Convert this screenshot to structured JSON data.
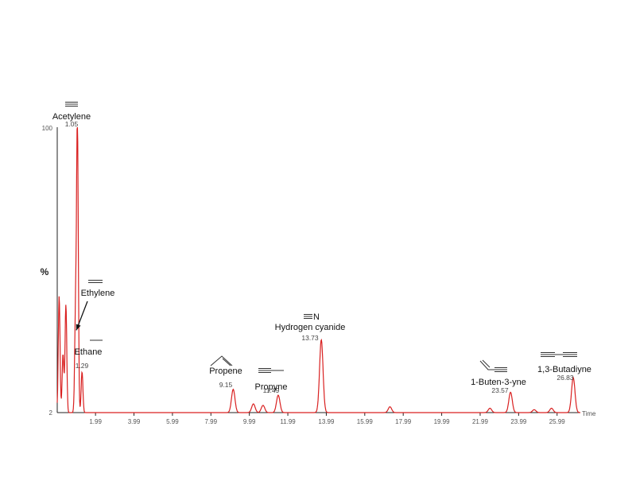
{
  "chart_data": {
    "type": "line",
    "title": "",
    "xlabel": "Time",
    "ylabel": "%",
    "y_tick_labels": [
      "100",
      "2"
    ],
    "x_tick_labels": [
      "1.99",
      "3.99",
      "5.99",
      "7.99",
      "9.99",
      "11.99",
      "13.99",
      "15.99",
      "17.99",
      "19.99",
      "21.99",
      "23.99",
      "25.99"
    ],
    "xlim": [
      0.0,
      27.2
    ],
    "ylim": [
      2,
      100
    ],
    "series_color": "#d92020",
    "peaks": [
      {
        "rt": 1.05,
        "height": 100,
        "name": "Acetylene",
        "rt_label": "1.05",
        "structure": "triple"
      },
      {
        "rt": 0.95,
        "height": 33,
        "name": "Ethylene",
        "rt_label": "",
        "structure": "double"
      },
      {
        "rt": 1.29,
        "height": 14,
        "name": "Ethane",
        "rt_label": "1.29",
        "structure": "single"
      },
      {
        "rt": 9.15,
        "height": 8,
        "name": "Propene",
        "rt_label": "9.15",
        "structure": "propene"
      },
      {
        "rt": 11.49,
        "height": 6,
        "name": "Propyne",
        "rt_label": "11.49",
        "structure": "propyne"
      },
      {
        "rt": 13.73,
        "height": 25,
        "name": "Hydrogen cyanide",
        "rt_label": "13.73",
        "structure": "nitrile",
        "structure_text": "N"
      },
      {
        "rt": 23.57,
        "height": 7,
        "name": "1-Buten-3-yne",
        "rt_label": "23.57",
        "structure": "butenyne"
      },
      {
        "rt": 26.83,
        "height": 12,
        "name": "1,3-Butadiyne",
        "rt_label": "26.83",
        "structure": "diyne"
      }
    ],
    "minor_peaks": [
      {
        "rt": 0.1,
        "height": 40
      },
      {
        "rt": 0.45,
        "height": 37
      },
      {
        "rt": 0.3,
        "height": 20
      },
      {
        "rt": 10.2,
        "height": 3
      },
      {
        "rt": 10.7,
        "height": 2.5
      },
      {
        "rt": 17.3,
        "height": 2
      },
      {
        "rt": 22.5,
        "height": 1.5
      },
      {
        "rt": 24.8,
        "height": 1
      },
      {
        "rt": 25.7,
        "height": 1.5
      }
    ]
  }
}
